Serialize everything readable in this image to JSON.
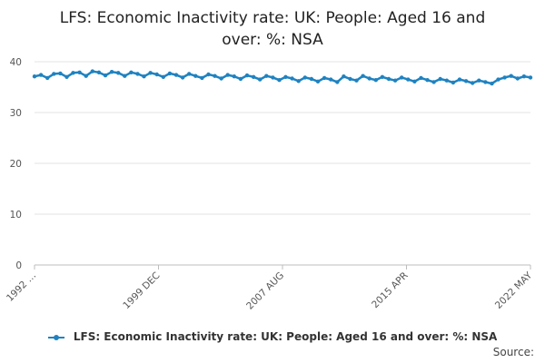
{
  "chart_data": {
    "type": "line",
    "title": "LFS: Economic Inactivity rate: UK: People: Aged 16 and over: %: NSA",
    "title_lines": [
      "LFS: Economic Inactivity rate: UK: People: Aged 16 and",
      "over: %: NSA"
    ],
    "x_tick_labels": [
      "1992 …",
      "1999 DEC",
      "2007 AUG",
      "2015 APR",
      "2022 MAY"
    ],
    "ylim": [
      0,
      40
    ],
    "y_ticks": [
      0,
      10,
      20,
      30,
      40
    ],
    "grid": true,
    "legend_position": "bottom",
    "series": [
      {
        "name": "LFS: Economic Inactivity rate: UK: People: Aged 16 and over: %: NSA",
        "color": "#1f82c0",
        "values": [
          37.1,
          37.4,
          36.8,
          37.6,
          37.7,
          37.0,
          37.8,
          37.9,
          37.2,
          38.1,
          37.9,
          37.3,
          38.0,
          37.8,
          37.2,
          37.9,
          37.6,
          37.1,
          37.8,
          37.5,
          37.0,
          37.7,
          37.4,
          36.9,
          37.6,
          37.2,
          36.8,
          37.5,
          37.2,
          36.7,
          37.4,
          37.1,
          36.6,
          37.3,
          37.0,
          36.5,
          37.2,
          36.9,
          36.4,
          37.0,
          36.7,
          36.2,
          36.9,
          36.6,
          36.1,
          36.8,
          36.5,
          36.0,
          37.1,
          36.6,
          36.3,
          37.2,
          36.7,
          36.4,
          37.0,
          36.6,
          36.3,
          36.9,
          36.5,
          36.1,
          36.8,
          36.4,
          36.0,
          36.6,
          36.3,
          35.9,
          36.5,
          36.2,
          35.8,
          36.3,
          36.0,
          35.7,
          36.5,
          36.9,
          37.2,
          36.7,
          37.1,
          36.9
        ]
      }
    ]
  },
  "legend": {
    "label": "LFS: Economic Inactivity rate: UK: People: Aged 16 and over: %: NSA"
  },
  "source_label": "Source:"
}
